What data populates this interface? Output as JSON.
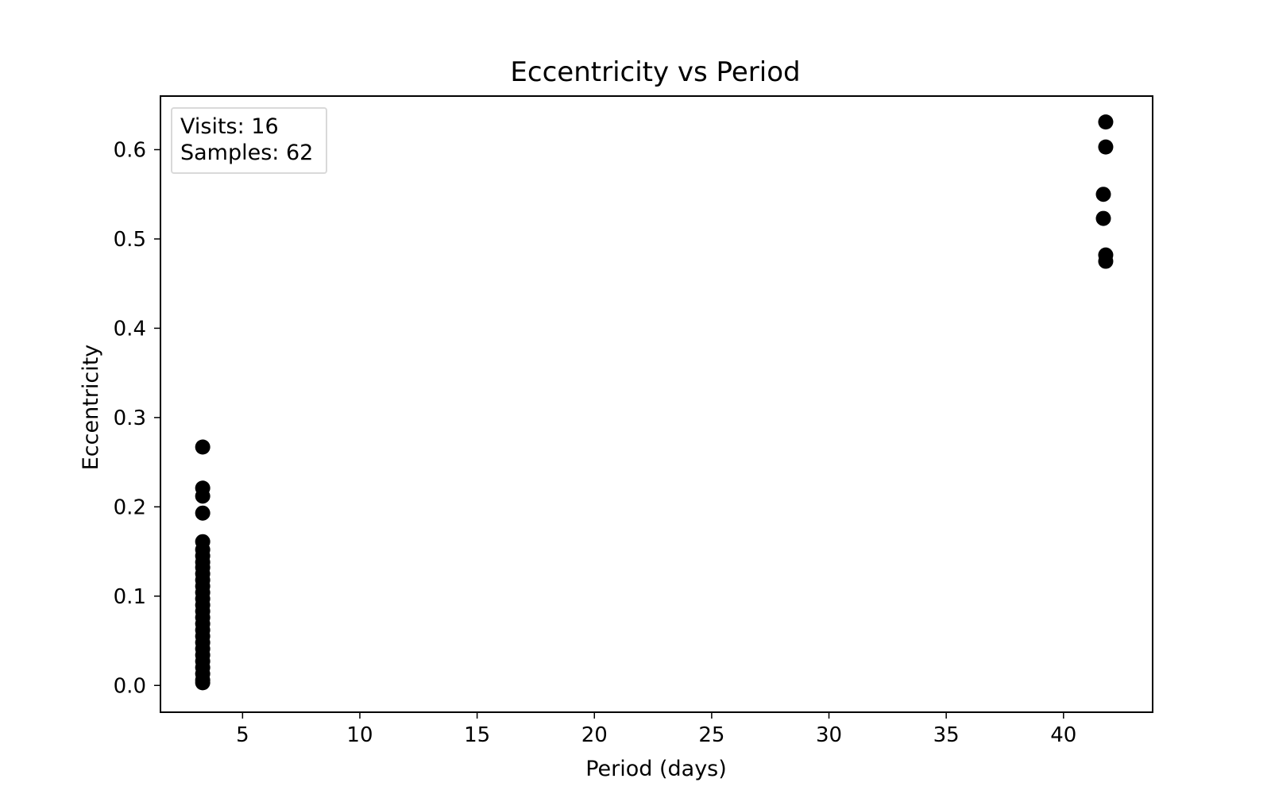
{
  "chart_data": {
    "type": "scatter",
    "title": "Eccentricity vs Period",
    "xlabel": "Period (days)",
    "ylabel": "Eccentricity",
    "xlim": [
      1.5,
      43.8
    ],
    "ylim": [
      -0.03,
      0.66
    ],
    "xticks": [
      5,
      10,
      15,
      20,
      25,
      30,
      35,
      40
    ],
    "yticks": [
      0.0,
      0.1,
      0.2,
      0.3,
      0.4,
      0.5,
      0.6
    ],
    "ytick_labels": [
      "0.0",
      "0.1",
      "0.2",
      "0.3",
      "0.4",
      "0.5",
      "0.6"
    ],
    "grid": false,
    "legend": {
      "placement": "top-left",
      "lines": [
        "Visits: 16",
        "Samples: 62"
      ]
    },
    "marker_color": "#000000",
    "series": [
      {
        "points": [
          {
            "x": 3.3,
            "y": 0.267
          },
          {
            "x": 3.3,
            "y": 0.221
          },
          {
            "x": 3.3,
            "y": 0.212
          },
          {
            "x": 3.3,
            "y": 0.193
          },
          {
            "x": 3.3,
            "y": 0.161
          },
          {
            "x": 3.3,
            "y": 0.152
          },
          {
            "x": 3.3,
            "y": 0.145
          },
          {
            "x": 3.3,
            "y": 0.138
          },
          {
            "x": 3.3,
            "y": 0.132
          },
          {
            "x": 3.3,
            "y": 0.125
          },
          {
            "x": 3.3,
            "y": 0.118
          },
          {
            "x": 3.3,
            "y": 0.111
          },
          {
            "x": 3.3,
            "y": 0.104
          },
          {
            "x": 3.3,
            "y": 0.097
          },
          {
            "x": 3.3,
            "y": 0.09
          },
          {
            "x": 3.3,
            "y": 0.083
          },
          {
            "x": 3.3,
            "y": 0.076
          },
          {
            "x": 3.3,
            "y": 0.069
          },
          {
            "x": 3.3,
            "y": 0.062
          },
          {
            "x": 3.3,
            "y": 0.055
          },
          {
            "x": 3.3,
            "y": 0.048
          },
          {
            "x": 3.3,
            "y": 0.041
          },
          {
            "x": 3.3,
            "y": 0.034
          },
          {
            "x": 3.3,
            "y": 0.027
          },
          {
            "x": 3.3,
            "y": 0.02
          },
          {
            "x": 3.3,
            "y": 0.013
          },
          {
            "x": 3.3,
            "y": 0.006
          },
          {
            "x": 3.3,
            "y": 0.003
          },
          {
            "x": 41.8,
            "y": 0.631
          },
          {
            "x": 41.8,
            "y": 0.603
          },
          {
            "x": 41.7,
            "y": 0.55
          },
          {
            "x": 41.7,
            "y": 0.523
          },
          {
            "x": 41.8,
            "y": 0.482
          },
          {
            "x": 41.8,
            "y": 0.475
          }
        ]
      }
    ]
  }
}
